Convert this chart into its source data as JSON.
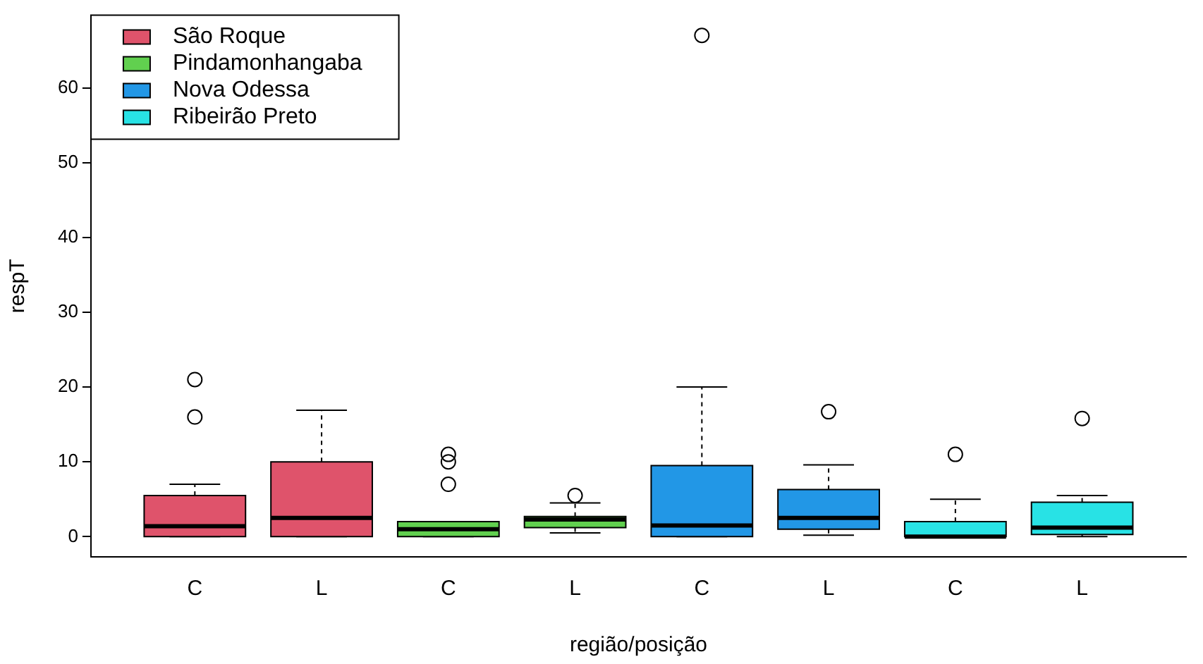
{
  "chart_data": {
    "type": "box",
    "xlabel": "região/posição",
    "ylabel": "respT",
    "categories": [
      "C",
      "L",
      "C",
      "L",
      "C",
      "L",
      "C",
      "L"
    ],
    "ylim": [
      -2.7,
      69.7
    ],
    "yticks": [
      0,
      10,
      20,
      30,
      40,
      50,
      60
    ],
    "grid": false,
    "legend": "top left",
    "series": [
      {
        "name": "São Roque",
        "color": "#df536b",
        "boxes": [
          {
            "low": 0,
            "q1": 0,
            "median": 1.4,
            "q3": 5.5,
            "high": 7,
            "outliers": [
              16,
              21
            ]
          },
          {
            "low": 0,
            "q1": 0,
            "median": 2.5,
            "q3": 10,
            "high": 16.9
          },
          null,
          null,
          null,
          null,
          null,
          null
        ]
      },
      {
        "name": "Pindamonhangaba",
        "color": "#61d04f",
        "boxes": [
          null,
          null,
          {
            "low": 0,
            "q1": 0,
            "median": 1,
            "q3": 2,
            "high": 2,
            "outliers": [
              7,
              10,
              11
            ]
          },
          {
            "low": 0.5,
            "q1": 1.2,
            "median": 2.3,
            "q3": 2.7,
            "high": 4.5,
            "outliers": [
              5.5
            ]
          },
          null,
          null,
          null,
          null
        ]
      },
      {
        "name": "Nova Odessa",
        "color": "#2297e6",
        "boxes": [
          null,
          null,
          null,
          null,
          {
            "low": 0,
            "q1": 0,
            "median": 1.5,
            "q3": 9.5,
            "high": 20,
            "outliers": [
              67
            ]
          },
          {
            "low": 0.2,
            "q1": 1,
            "median": 2.5,
            "q3": 6.3,
            "high": 9.6,
            "outliers": [
              16.7
            ]
          },
          null,
          null
        ]
      },
      {
        "name": "Ribeirão Preto",
        "color": "#28e2e5",
        "boxes": [
          null,
          null,
          null,
          null,
          null,
          null,
          {
            "low": 0,
            "q1": 0,
            "median": 0,
            "q3": 2,
            "high": 5,
            "outliers": [
              11
            ]
          },
          {
            "low": 0,
            "q1": 0.3,
            "median": 1.2,
            "q3": 4.6,
            "high": 5.5,
            "outliers": [
              15.8
            ]
          }
        ]
      }
    ]
  }
}
